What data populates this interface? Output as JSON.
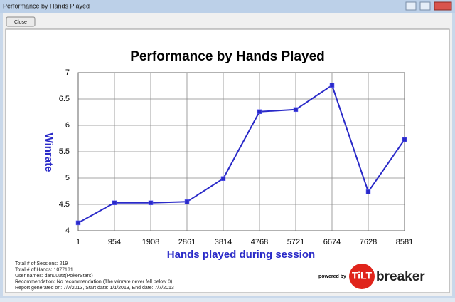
{
  "window": {
    "title": "Performance by Hands Played",
    "close_button": "Close"
  },
  "chart_data": {
    "type": "line",
    "title": "Performance by Hands Played",
    "x_label": "Hands played during session",
    "y_label": "Winrate",
    "categories": [
      "1",
      "954",
      "1908",
      "2861",
      "3814",
      "4768",
      "5721",
      "6674",
      "7628",
      "8581"
    ],
    "series": [
      {
        "name": "Winrate",
        "color": "#2a2ac8",
        "values": [
          4.15,
          4.53,
          4.53,
          4.55,
          4.99,
          6.26,
          6.3,
          6.76,
          4.74,
          5.73
        ]
      }
    ],
    "ylim": [
      4,
      7
    ],
    "yticks": [
      4,
      4.5,
      5,
      5.5,
      6,
      6.5,
      7
    ],
    "grid": true
  },
  "footer": {
    "lines": [
      "Total # of Sessions: 219",
      "Total # of Hands: 1077131",
      "User names: danuuutz(PokerStars)",
      "Recommendation: No recommendation (The winrate never fell below 0)",
      "Report generated on: 7/7/2013, Start date: 1/1/2013, End date: 7/7/2013"
    ]
  },
  "logo": {
    "powered_by": "powered by",
    "tilt": "TiLT",
    "breaker": "breaker"
  }
}
